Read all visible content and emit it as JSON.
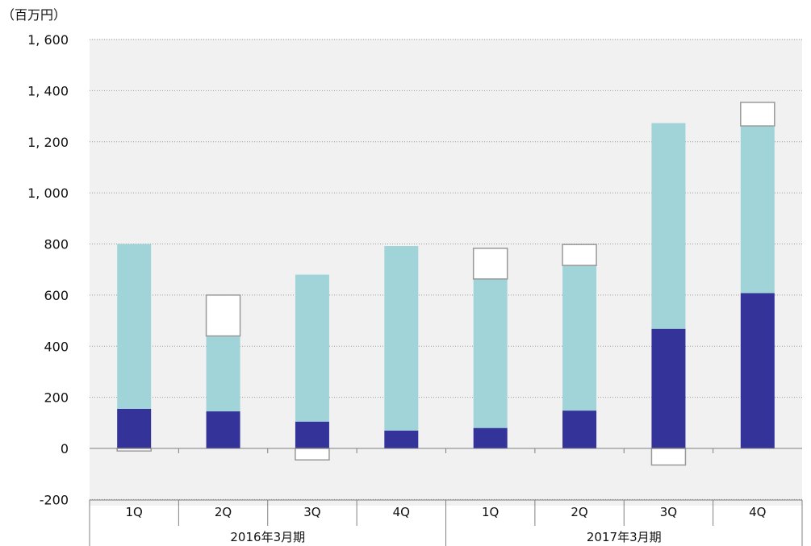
{
  "chart_data": {
    "type": "bar",
    "stacked": true,
    "unit_label": "（百万円）",
    "title": "",
    "xlabel": "",
    "ylabel": "",
    "ylim": [
      -200,
      1600
    ],
    "yticks": [
      -200,
      0,
      200,
      400,
      600,
      800,
      1000,
      1200,
      1400,
      1600
    ],
    "ytick_labels": [
      "-200",
      "0",
      "200",
      "400",
      "600",
      "800",
      "1, 000",
      "1, 200",
      "1, 400",
      "1, 600"
    ],
    "grid": "horizontal dotted",
    "legend": "none",
    "categories": [
      "1Q",
      "2Q",
      "3Q",
      "4Q",
      "1Q",
      "2Q",
      "3Q",
      "4Q"
    ],
    "groups": [
      {
        "label": "2016年3月期",
        "categories": [
          "1Q",
          "2Q",
          "3Q",
          "4Q"
        ]
      },
      {
        "label": "2017年3月期",
        "categories": [
          "1Q",
          "2Q",
          "3Q",
          "4Q"
        ]
      }
    ],
    "series": [
      {
        "color": "#333399",
        "values": [
          155,
          145,
          105,
          70,
          80,
          148,
          468,
          608
        ]
      },
      {
        "color": "#a1d4d8",
        "values": [
          645,
          295,
          575,
          722,
          583,
          568,
          805,
          654
        ]
      },
      {
        "color": "#ffffff",
        "stroke": "#999999",
        "values": [
          -10,
          160,
          -45,
          0,
          120,
          82,
          -65,
          92
        ]
      }
    ]
  }
}
